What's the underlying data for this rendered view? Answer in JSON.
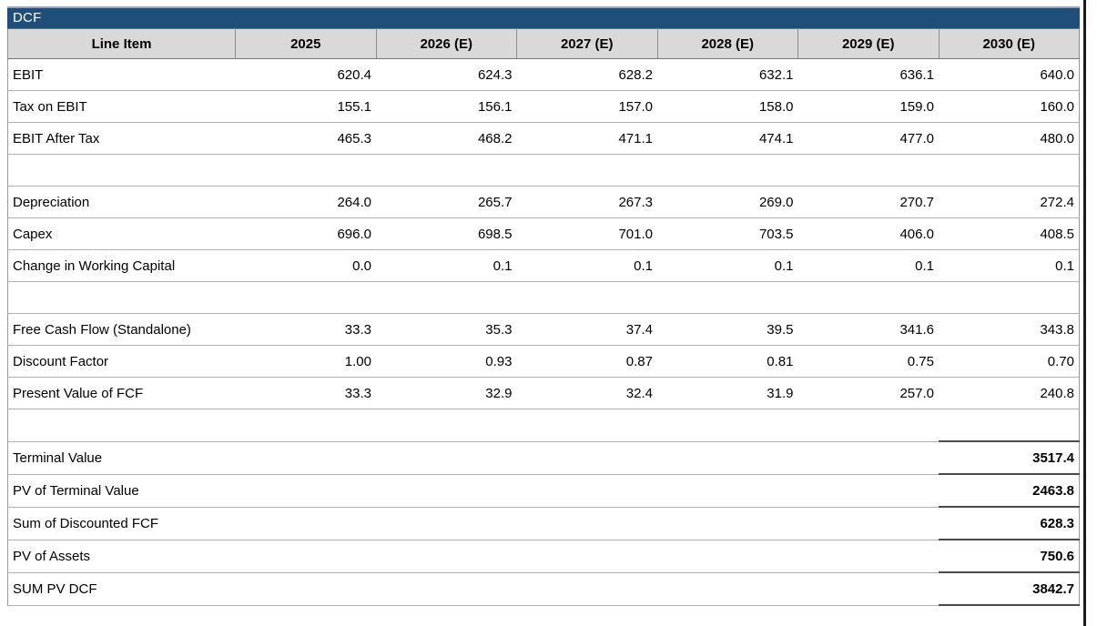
{
  "title_bar": {
    "label": "DCF"
  },
  "colors": {
    "title_bg": "#1F4E79",
    "title_highlight": "#8FA5C4",
    "title_text": "#FFFFFF",
    "header_bg": "#D9D9D9",
    "row_border": "#B0B0B0",
    "summary_border": "#4A4A4A",
    "window_edge": "#1B1B1B"
  },
  "table": {
    "columns": [
      "Line Item",
      "2025",
      "2026 (E)",
      "2027 (E)",
      "2028 (E)",
      "2029 (E)",
      "2030 (E)"
    ],
    "rows": [
      {
        "type": "data",
        "label": "EBIT",
        "values": [
          "620.4",
          "624.3",
          "628.2",
          "632.1",
          "636.1",
          "640.0"
        ]
      },
      {
        "type": "data",
        "label": "Tax on EBIT",
        "values": [
          "155.1",
          "156.1",
          "157.0",
          "158.0",
          "159.0",
          "160.0"
        ]
      },
      {
        "type": "data",
        "label": "EBIT After Tax",
        "values": [
          "465.3",
          "468.2",
          "471.1",
          "474.1",
          "477.0",
          "480.0"
        ]
      },
      {
        "type": "blank"
      },
      {
        "type": "data",
        "label": "Depreciation",
        "values": [
          "264.0",
          "265.7",
          "267.3",
          "269.0",
          "270.7",
          "272.4"
        ]
      },
      {
        "type": "data",
        "label": "Capex",
        "values": [
          "696.0",
          "698.5",
          "701.0",
          "703.5",
          "406.0",
          "408.5"
        ]
      },
      {
        "type": "data",
        "label": "Change in Working Capital",
        "values": [
          "0.0",
          "0.1",
          "0.1",
          "0.1",
          "0.1",
          "0.1"
        ]
      },
      {
        "type": "blank"
      },
      {
        "type": "data",
        "label": "Free Cash Flow (Standalone)",
        "values": [
          "33.3",
          "35.3",
          "37.4",
          "39.5",
          "341.6",
          "343.8"
        ]
      },
      {
        "type": "data",
        "label": "Discount Factor",
        "values": [
          "1.00",
          "0.93",
          "0.87",
          "0.81",
          "0.75",
          "0.70"
        ]
      },
      {
        "type": "data",
        "label": "Present Value of FCF",
        "values": [
          "33.3",
          "32.9",
          "32.4",
          "31.9",
          "257.0",
          "240.8"
        ]
      },
      {
        "type": "blank"
      },
      {
        "type": "summary",
        "label": "Terminal Value",
        "value": "3517.4"
      },
      {
        "type": "summary",
        "label": "PV of Terminal Value",
        "value": "2463.8"
      },
      {
        "type": "summary",
        "label": "Sum of Discounted FCF",
        "value": "628.3"
      },
      {
        "type": "summary",
        "label": "PV of Assets",
        "value": "750.6"
      },
      {
        "type": "summary",
        "label": "SUM PV DCF",
        "value": "3842.7"
      }
    ]
  }
}
